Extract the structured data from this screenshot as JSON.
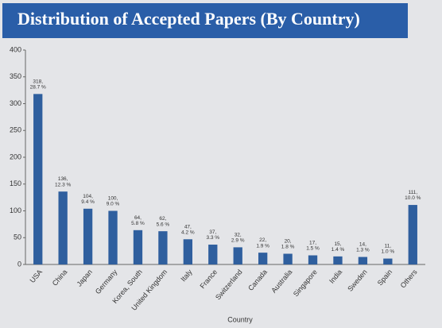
{
  "chart_data": {
    "type": "bar",
    "title": "Distribution of Accepted Papers (By Country)",
    "x_label": "Country",
    "categories": [
      "USA",
      "China",
      "Japan",
      "Germany",
      "Korea, South",
      "United Kingdom",
      "Italy",
      "France",
      "Switzerland",
      "Canada",
      "Australia",
      "Singapore",
      "India",
      "Sweden",
      "Spain",
      "Others"
    ],
    "values": [
      318,
      136,
      104,
      100,
      64,
      62,
      47,
      37,
      32,
      22,
      20,
      17,
      15,
      14,
      11,
      111
    ],
    "value_labels": [
      "318,\n28.7 %",
      "136,\n12.3 %",
      "104,\n9.4 %",
      "100,\n9.0 %",
      "64,\n5.8 %",
      "62,\n5.6 %",
      "47,\n4.2 %",
      "37,\n3.3 %",
      "32,\n2.9 %",
      "22,\n1.9 %",
      "20,\n1.8 %",
      "17,\n1.5 %",
      "15,\n1.4 %",
      "14,\n1.3 %",
      "11,\n1.0 %",
      "111,\n10.0 %"
    ],
    "color": "#2f5f9e",
    "ylim": [
      0,
      400
    ],
    "yticks": [
      0,
      50,
      100,
      150,
      200,
      250,
      300,
      350,
      400
    ],
    "grid": false
  }
}
